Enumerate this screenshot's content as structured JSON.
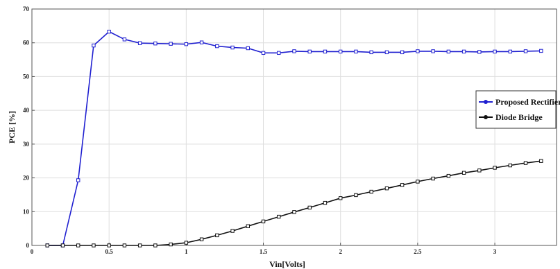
{
  "chart_data": {
    "type": "line",
    "xlabel": "Vin[Volts]",
    "ylabel": "PCE [%]",
    "xlim": [
      0,
      3.4
    ],
    "ylim": [
      0,
      70
    ],
    "xticks": [
      0,
      0.5,
      1,
      1.5,
      2,
      2.5,
      3
    ],
    "xtick_labels": [
      "0",
      "0.5",
      "1",
      "1.5",
      "2",
      "2.5",
      "3"
    ],
    "yticks": [
      0,
      10,
      20,
      30,
      40,
      50,
      60,
      70
    ],
    "ytick_labels": [
      "0",
      "10",
      "20",
      "30",
      "40",
      "50",
      "60",
      "70"
    ],
    "grid": true,
    "legend_position": "right",
    "x": [
      0.1,
      0.2,
      0.3,
      0.4,
      0.5,
      0.6,
      0.7,
      0.8,
      0.9,
      1.0,
      1.1,
      1.2,
      1.3,
      1.4,
      1.5,
      1.6,
      1.7,
      1.8,
      1.9,
      2.0,
      2.1,
      2.2,
      2.3,
      2.4,
      2.5,
      2.6,
      2.7,
      2.8,
      2.9,
      3.0,
      3.1,
      3.2,
      3.3
    ],
    "series": [
      {
        "name": "Proposed Rectifier",
        "color": "#1f1fd0",
        "values": [
          0,
          0,
          19.3,
          59.2,
          63.3,
          61.0,
          59.9,
          59.8,
          59.7,
          59.6,
          60.1,
          59.0,
          58.6,
          58.4,
          57.0,
          57.0,
          57.5,
          57.4,
          57.4,
          57.4,
          57.4,
          57.2,
          57.2,
          57.2,
          57.5,
          57.5,
          57.4,
          57.4,
          57.3,
          57.4,
          57.4,
          57.5,
          57.6
        ]
      },
      {
        "name": "Diode Bridge",
        "color": "#111111",
        "values": [
          0,
          0,
          0,
          0,
          0,
          0,
          0,
          0,
          0.3,
          0.8,
          1.8,
          3.0,
          4.3,
          5.7,
          7.1,
          8.5,
          9.9,
          11.2,
          12.6,
          14.0,
          14.9,
          15.9,
          16.9,
          17.9,
          18.9,
          19.8,
          20.6,
          21.5,
          22.2,
          23.0,
          23.7,
          24.4,
          25.0
        ]
      }
    ]
  }
}
